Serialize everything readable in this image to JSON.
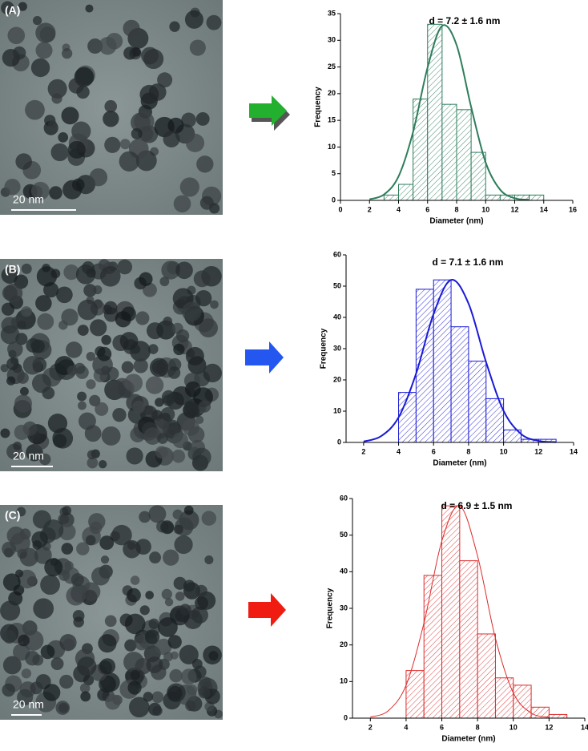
{
  "images": [
    {
      "label": "(A)",
      "scale_bar": "20 nm"
    },
    {
      "label": "(B)",
      "scale_bar": "20 nm"
    },
    {
      "label": "(C)",
      "scale_bar": "20 nm"
    }
  ],
  "chart_data": [
    {
      "type": "histogram",
      "title": "d = 7.2 ± 1.6 nm",
      "xlabel": "Diameter (nm)",
      "ylabel": "Frequency",
      "color": "#2e7d5b",
      "bins": [
        3,
        4,
        5,
        6,
        7,
        8,
        9,
        10,
        11,
        12,
        13,
        14
      ],
      "counts": [
        1,
        3,
        19,
        33,
        18,
        17,
        9,
        1,
        1,
        1,
        1
      ],
      "fit": {
        "x": [
          2,
          3,
          4,
          5,
          6,
          7,
          8,
          9,
          10,
          11,
          12,
          13
        ],
        "values": [
          0.2,
          1.1,
          4.5,
          12.8,
          24.9,
          32.7,
          29.1,
          17.5,
          7.1,
          2.0,
          0.4,
          0.1
        ]
      },
      "xlim": [
        0,
        16
      ],
      "xticks": [
        0,
        2,
        4,
        6,
        8,
        10,
        12,
        14,
        16
      ],
      "ylim": [
        0,
        35
      ],
      "yticks": [
        0,
        5,
        10,
        15,
        20,
        25,
        30,
        35
      ]
    },
    {
      "type": "histogram",
      "title": "d  = 7.1 ± 1.6 nm",
      "xlabel": "Diameter (nm)",
      "ylabel": "Frequency",
      "color": "#1a1ad6",
      "bins": [
        4,
        5,
        6,
        7,
        8,
        9,
        10,
        11,
        12,
        13
      ],
      "counts": [
        16,
        49,
        52,
        37,
        26,
        14,
        4,
        1,
        1
      ],
      "fit": {
        "x": [
          2,
          3,
          4,
          5,
          6,
          7,
          8,
          9,
          10,
          11,
          12,
          13
        ],
        "values": [
          0.3,
          2.0,
          8.0,
          22.0,
          41.1,
          52.0,
          44.4,
          25.7,
          10.1,
          2.7,
          0.5,
          0.1
        ]
      },
      "xlim": [
        1,
        14
      ],
      "xticks": [
        2,
        4,
        6,
        8,
        10,
        12,
        14
      ],
      "ylim": [
        0,
        60
      ],
      "yticks": [
        0,
        10,
        20,
        30,
        40,
        50,
        60
      ]
    },
    {
      "type": "histogram",
      "title": "d  = 6.9 ± 1.5 nm",
      "xlabel": "Diameter (nm)",
      "ylabel": "Frequency",
      "color": "#dd2a2a",
      "bins": [
        4,
        5,
        6,
        7,
        8,
        9,
        10,
        11,
        12,
        13
      ],
      "counts": [
        13,
        39,
        58,
        43,
        23,
        11,
        9,
        3,
        1
      ],
      "fit": {
        "x": [
          2,
          3,
          4,
          5,
          6,
          7,
          8,
          9,
          10,
          11,
          12
        ],
        "values": [
          0.3,
          2.0,
          9.0,
          26.0,
          48.4,
          58.0,
          44.3,
          21.8,
          6.9,
          1.4,
          0.2
        ]
      },
      "xlim": [
        1,
        14
      ],
      "xticks": [
        2,
        4,
        6,
        8,
        10,
        12,
        14
      ],
      "ylim": [
        0,
        60
      ],
      "yticks": [
        0,
        10,
        20,
        30,
        40,
        50,
        60
      ]
    }
  ]
}
